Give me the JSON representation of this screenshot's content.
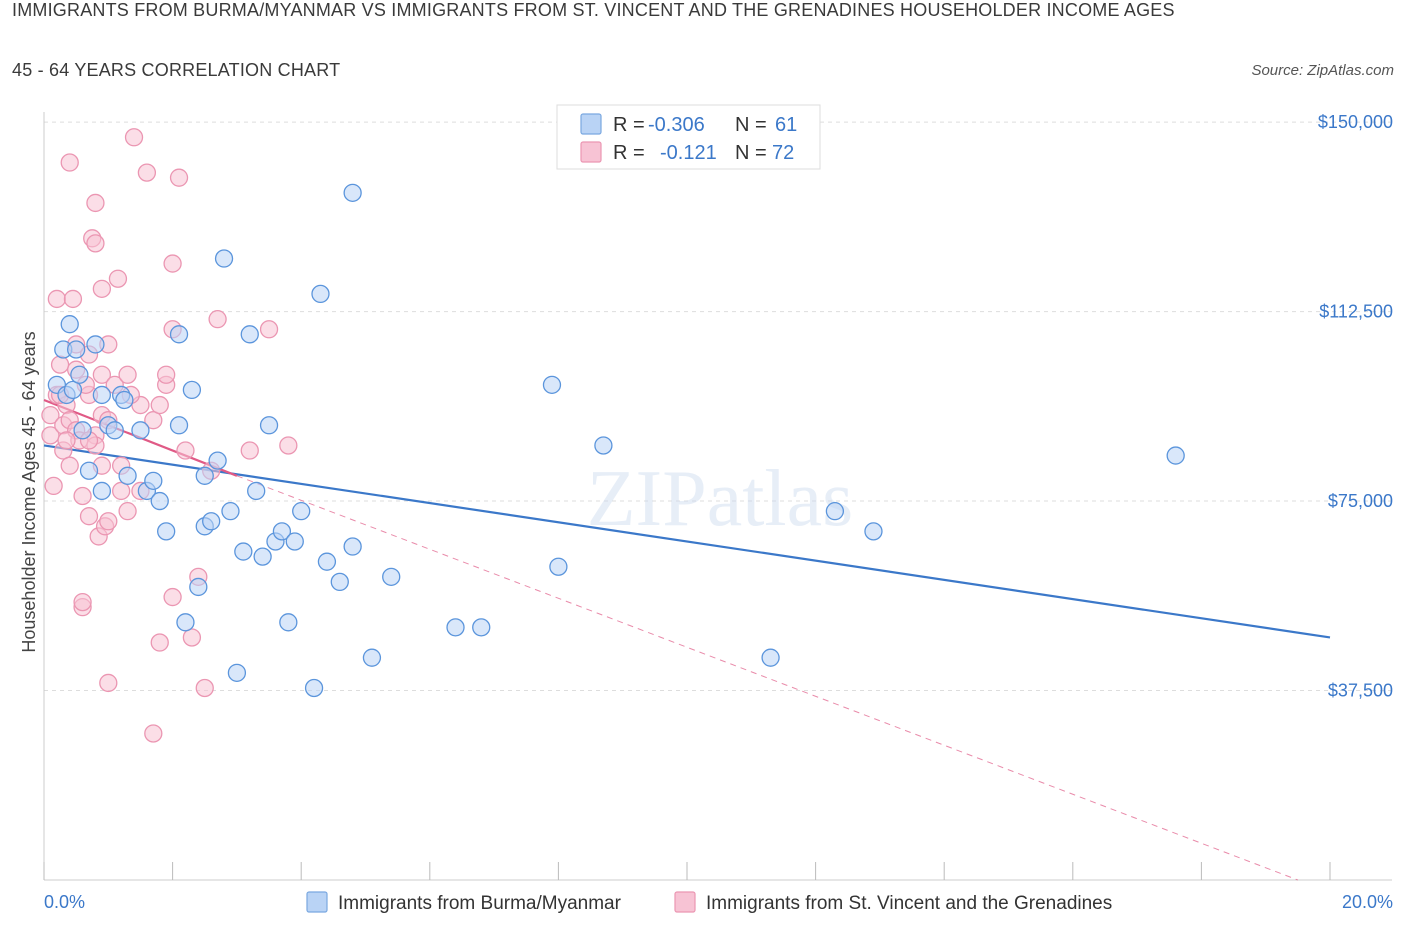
{
  "title_line1": "IMMIGRANTS FROM BURMA/MYANMAR VS IMMIGRANTS FROM ST. VINCENT AND THE GRENADINES HOUSEHOLDER INCOME AGES",
  "title_line2": "45 - 64 YEARS CORRELATION CHART",
  "source": "Source: ZipAtlas.com",
  "watermark": "ZIPatlas",
  "colors": {
    "blue": "#3b78c9",
    "blue_fill": "#b9d3f5",
    "pink": "#e05a86",
    "pink_fill": "#f7c3d4",
    "grid": "#dddddd"
  },
  "legend": {
    "rows": [
      {
        "r_label": "R =",
        "r_value": "-0.306",
        "n_label": "N =",
        "n_value": "61"
      },
      {
        "r_label": "R =",
        "r_value": "-0.121",
        "n_label": "N =",
        "n_value": "72"
      }
    ]
  },
  "chart_data": {
    "type": "scatter",
    "title": "IMMIGRANTS FROM BURMA/MYANMAR VS IMMIGRANTS FROM ST. VINCENT AND THE GRENADINES HOUSEHOLDER INCOME AGES 45 - 64 YEARS CORRELATION CHART",
    "xlabel": "",
    "ylabel": "Householder Income Ages 45 - 64 years",
    "xlim": [
      0,
      20
    ],
    "ylim": [
      0,
      152000
    ],
    "x_tick_labels": {
      "left": "0.0%",
      "right": "20.0%"
    },
    "y_ticks": [
      {
        "value": 37500,
        "label": "$37,500"
      },
      {
        "value": 75000,
        "label": "$75,000"
      },
      {
        "value": 112500,
        "label": "$112,500"
      },
      {
        "value": 150000,
        "label": "$150,000"
      }
    ],
    "grid": true,
    "series": [
      {
        "name": "Immigrants from Burma/Myanmar",
        "color": "#3b78c9",
        "points": [
          [
            0.2,
            98000
          ],
          [
            0.3,
            105000
          ],
          [
            0.4,
            110000
          ],
          [
            0.5,
            105000
          ],
          [
            0.8,
            106000
          ],
          [
            0.6,
            89000
          ],
          [
            0.7,
            81000
          ],
          [
            0.9,
            77000
          ],
          [
            0.9,
            96000
          ],
          [
            1.0,
            90000
          ],
          [
            1.1,
            89000
          ],
          [
            1.2,
            96000
          ],
          [
            1.3,
            80000
          ],
          [
            1.5,
            89000
          ],
          [
            1.6,
            77000
          ],
          [
            1.7,
            79000
          ],
          [
            1.8,
            75000
          ],
          [
            1.9,
            69000
          ],
          [
            2.1,
            90000
          ],
          [
            2.2,
            51000
          ],
          [
            2.1,
            108000
          ],
          [
            2.3,
            97000
          ],
          [
            2.4,
            58000
          ],
          [
            2.5,
            80000
          ],
          [
            2.5,
            70000
          ],
          [
            2.6,
            71000
          ],
          [
            2.7,
            83000
          ],
          [
            2.8,
            123000
          ],
          [
            2.9,
            73000
          ],
          [
            3.0,
            41000
          ],
          [
            3.1,
            65000
          ],
          [
            3.2,
            108000
          ],
          [
            3.3,
            77000
          ],
          [
            3.4,
            64000
          ],
          [
            3.5,
            90000
          ],
          [
            3.6,
            67000
          ],
          [
            3.7,
            69000
          ],
          [
            3.8,
            51000
          ],
          [
            3.9,
            67000
          ],
          [
            4.0,
            73000
          ],
          [
            4.2,
            38000
          ],
          [
            4.3,
            116000
          ],
          [
            4.4,
            63000
          ],
          [
            4.6,
            59000
          ],
          [
            4.8,
            66000
          ],
          [
            4.8,
            136000
          ],
          [
            5.1,
            44000
          ],
          [
            5.4,
            60000
          ],
          [
            6.4,
            50000
          ],
          [
            6.8,
            50000
          ],
          [
            7.9,
            98000
          ],
          [
            8.0,
            62000
          ],
          [
            8.7,
            86000
          ],
          [
            11.3,
            44000
          ],
          [
            12.3,
            73000
          ],
          [
            12.9,
            69000
          ],
          [
            17.6,
            84000
          ],
          [
            0.35,
            96000
          ],
          [
            0.45,
            97000
          ],
          [
            1.25,
            95000
          ],
          [
            0.55,
            100000
          ]
        ],
        "trend": {
          "x": [
            0,
            20
          ],
          "y": [
            86000,
            48000
          ]
        }
      },
      {
        "name": "Immigrants from St. Vincent and the Grenadines",
        "color": "#e05a86",
        "points": [
          [
            0.1,
            92000
          ],
          [
            0.1,
            88000
          ],
          [
            0.15,
            78000
          ],
          [
            0.2,
            115000
          ],
          [
            0.2,
            96000
          ],
          [
            0.25,
            102000
          ],
          [
            0.3,
            90000
          ],
          [
            0.3,
            85000
          ],
          [
            0.35,
            94000
          ],
          [
            0.4,
            91000
          ],
          [
            0.4,
            82000
          ],
          [
            0.4,
            142000
          ],
          [
            0.45,
            115000
          ],
          [
            0.5,
            106000
          ],
          [
            0.5,
            89000
          ],
          [
            0.55,
            87000
          ],
          [
            0.6,
            76000
          ],
          [
            0.6,
            54000
          ],
          [
            0.6,
            55000
          ],
          [
            0.7,
            96000
          ],
          [
            0.7,
            72000
          ],
          [
            0.75,
            127000
          ],
          [
            0.8,
            134000
          ],
          [
            0.8,
            126000
          ],
          [
            0.8,
            88000
          ],
          [
            0.85,
            68000
          ],
          [
            0.9,
            117000
          ],
          [
            0.9,
            100000
          ],
          [
            0.9,
            92000
          ],
          [
            0.95,
            70000
          ],
          [
            1.0,
            106000
          ],
          [
            1.0,
            91000
          ],
          [
            1.0,
            71000
          ],
          [
            0.8,
            86000
          ],
          [
            0.7,
            87000
          ],
          [
            0.9,
            82000
          ],
          [
            0.7,
            104000
          ],
          [
            1.0,
            39000
          ],
          [
            1.1,
            98000
          ],
          [
            1.2,
            82000
          ],
          [
            1.2,
            77000
          ],
          [
            1.3,
            100000
          ],
          [
            1.3,
            73000
          ],
          [
            1.4,
            147000
          ],
          [
            1.5,
            94000
          ],
          [
            1.5,
            77000
          ],
          [
            1.6,
            140000
          ],
          [
            1.7,
            29000
          ],
          [
            1.7,
            91000
          ],
          [
            1.8,
            47000
          ],
          [
            1.8,
            94000
          ],
          [
            1.9,
            98000
          ],
          [
            1.9,
            100000
          ],
          [
            2.0,
            122000
          ],
          [
            2.0,
            109000
          ],
          [
            2.0,
            56000
          ],
          [
            2.1,
            139000
          ],
          [
            2.2,
            85000
          ],
          [
            2.3,
            48000
          ],
          [
            2.4,
            60000
          ],
          [
            2.5,
            38000
          ],
          [
            2.7,
            111000
          ],
          [
            2.6,
            81000
          ],
          [
            3.2,
            85000
          ],
          [
            3.5,
            109000
          ],
          [
            3.8,
            86000
          ],
          [
            0.35,
            87000
          ],
          [
            0.5,
            101000
          ],
          [
            0.65,
            98000
          ],
          [
            1.15,
            119000
          ],
          [
            0.25,
            96000
          ],
          [
            1.35,
            96000
          ]
        ],
        "trend": {
          "x": [
            0,
            3.0
          ],
          "y": [
            95000,
            80000
          ]
        },
        "trend_extended": {
          "x": [
            3.0,
            19.5
          ],
          "y": [
            80000,
            0
          ]
        }
      }
    ]
  },
  "bottom_legend": {
    "items": [
      {
        "label": "Immigrants from Burma/Myanmar"
      },
      {
        "label": "Immigrants from St. Vincent and the Grenadines"
      }
    ]
  }
}
